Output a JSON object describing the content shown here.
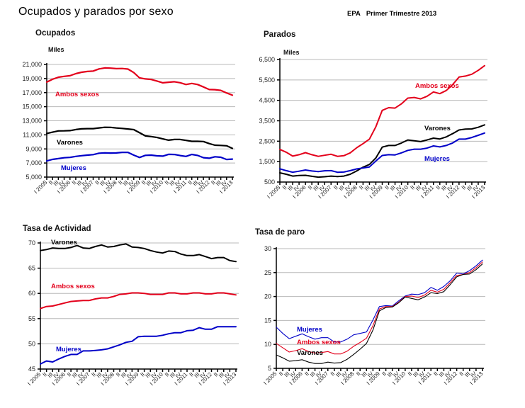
{
  "header": {
    "title": "Ocupados y parados por sexo",
    "source": "EPA",
    "period": "Primer Trimestre 2013"
  },
  "colors": {
    "ambos": "#e3001b",
    "varones": "#000000",
    "mujeres": "#0000c8",
    "grid": "#b8b8b8"
  },
  "chart_data": [
    {
      "id": "ocupados",
      "type": "line",
      "title": "Ocupados",
      "ylabel": "Miles",
      "xlabel": "",
      "ylim": [
        5000,
        21000
      ],
      "yticks": [
        5000,
        7000,
        9000,
        11000,
        13000,
        15000,
        17000,
        19000,
        21000
      ],
      "ytick_labels": [
        "5,000",
        "7,000",
        "9,000",
        "11,000",
        "13,000",
        "15,000",
        "17,000",
        "19,000",
        "21,000"
      ],
      "grid": true,
      "x": [
        "I 2005",
        "II",
        "III",
        "IV",
        "I 2006",
        "II",
        "III",
        "IV",
        "I 2007",
        "II",
        "III",
        "IV",
        "I 2008",
        "II",
        "III",
        "IV",
        "I 2009",
        "II",
        "III",
        "IV",
        "I 2010",
        "II",
        "III",
        "IV",
        "I 2011",
        "II",
        "III",
        "IV",
        "I 2012",
        "II",
        "III",
        "IV",
        "I 2013"
      ],
      "series": [
        {
          "name": "Ambos sexos",
          "color_key": "ambos",
          "values": [
            18490,
            18895,
            19191,
            19314,
            19400,
            19693,
            19896,
            20001,
            20069,
            20367,
            20511,
            20476,
            20402,
            20425,
            20346,
            19857,
            19090,
            18945,
            18870,
            18646,
            18394,
            18477,
            18547,
            18408,
            18152,
            18303,
            18156,
            17808,
            17433,
            17417,
            17320,
            16957,
            16635
          ]
        },
        {
          "name": "Varones",
          "color_key": "varones",
          "values": [
            11200,
            11376,
            11560,
            11570,
            11606,
            11750,
            11857,
            11880,
            11880,
            11980,
            12070,
            12060,
            11973,
            11918,
            11830,
            11740,
            11300,
            10851,
            10753,
            10630,
            10420,
            10245,
            10339,
            10345,
            10210,
            10080,
            10080,
            10050,
            9760,
            9525,
            9500,
            9450,
            9080
          ]
        },
        {
          "name": "Mujeres",
          "color_key": "mujeres",
          "values": [
            7290,
            7519,
            7631,
            7744,
            7794,
            7943,
            8039,
            8121,
            8189,
            8387,
            8441,
            8416,
            8429,
            8507,
            8516,
            8117,
            7790,
            8094,
            8117,
            8016,
            7974,
            8232,
            8208,
            8063,
            7942,
            8223,
            8076,
            7758,
            7673,
            7892,
            7820,
            7507,
            7555
          ]
        }
      ],
      "annotations": [
        {
          "text": "Ambos sexos",
          "color_key": "ambos"
        },
        {
          "text": "Varones",
          "color_key": "varones"
        },
        {
          "text": "Mujeres",
          "color_key": "mujeres"
        }
      ]
    },
    {
      "id": "parados",
      "type": "line",
      "title": "Parados",
      "ylabel": "Miles",
      "xlabel": "",
      "ylim": [
        500,
        6500
      ],
      "yticks": [
        500,
        1500,
        2500,
        3500,
        4500,
        5500,
        6500
      ],
      "ytick_labels": [
        "500",
        "1,500",
        "2,500",
        "3,500",
        "4,500",
        "5,500",
        "6,500"
      ],
      "grid": true,
      "x": [
        "I 2005",
        "II",
        "III",
        "IV",
        "I 2006",
        "II",
        "III",
        "IV",
        "I 2007",
        "II",
        "III",
        "IV",
        "I 2008",
        "II",
        "III",
        "IV",
        "I 2009",
        "II",
        "III",
        "IV",
        "I 2010",
        "II",
        "III",
        "IV",
        "I 2011",
        "II",
        "III",
        "IV",
        "I 2012",
        "II",
        "III",
        "IV",
        "I 2013"
      ],
      "series": [
        {
          "name": "Ambos sexos",
          "color_key": "ambos",
          "values": [
            2100,
            1960,
            1770,
            1840,
            1940,
            1840,
            1760,
            1810,
            1860,
            1760,
            1790,
            1930,
            2180,
            2380,
            2600,
            3210,
            4010,
            4140,
            4120,
            4330,
            4610,
            4640,
            4570,
            4700,
            4910,
            4830,
            4980,
            5270,
            5640,
            5690,
            5780,
            5970,
            6200
          ]
        },
        {
          "name": "Varones",
          "color_key": "varones",
          "values": [
            950,
            880,
            790,
            820,
            830,
            780,
            740,
            760,
            790,
            770,
            790,
            880,
            1040,
            1230,
            1360,
            1680,
            2210,
            2290,
            2290,
            2410,
            2560,
            2520,
            2480,
            2560,
            2650,
            2610,
            2710,
            2870,
            3050,
            3090,
            3100,
            3180,
            3300
          ]
        },
        {
          "name": "Mujeres",
          "color_key": "mujeres",
          "values": [
            1150,
            1060,
            980,
            1030,
            1090,
            1040,
            1010,
            1050,
            1060,
            980,
            990,
            1060,
            1140,
            1190,
            1240,
            1530,
            1800,
            1840,
            1830,
            1930,
            2050,
            2110,
            2110,
            2160,
            2270,
            2220,
            2290,
            2410,
            2600,
            2600,
            2680,
            2790,
            2900
          ]
        }
      ],
      "annotations": [
        {
          "text": "Ambos sexos",
          "color_key": "ambos"
        },
        {
          "text": "Varones",
          "color_key": "varones"
        },
        {
          "text": "Mujeres",
          "color_key": "mujeres"
        }
      ]
    },
    {
      "id": "tasa-actividad",
      "type": "line",
      "title": "Tasa de Actividad",
      "ylabel": "",
      "xlabel": "",
      "ylim": [
        45,
        70
      ],
      "yticks": [
        45,
        50,
        55,
        60,
        65,
        70
      ],
      "ytick_labels": [
        "45",
        "50",
        "55",
        "60",
        "65",
        "70"
      ],
      "grid": true,
      "x": [
        "I 2005",
        "II",
        "III",
        "IV",
        "I 2006",
        "II",
        "III",
        "IV",
        "I 2007",
        "II",
        "III",
        "IV",
        "I 2008",
        "II",
        "III",
        "IV",
        "I 2009",
        "II",
        "III",
        "IV",
        "I 2010",
        "II",
        "III",
        "IV",
        "I 2011",
        "II",
        "III",
        "IV",
        "I 2012",
        "II",
        "III",
        "IV",
        "I 2013"
      ],
      "series": [
        {
          "name": "Varones",
          "color_key": "varones",
          "values": [
            68.5,
            68.7,
            69.0,
            68.9,
            68.9,
            69.1,
            69.5,
            69.0,
            68.9,
            69.3,
            69.6,
            69.2,
            69.3,
            69.6,
            69.8,
            69.2,
            69.1,
            68.9,
            68.5,
            68.2,
            68.0,
            68.4,
            68.3,
            67.8,
            67.5,
            67.5,
            67.7,
            67.3,
            66.9,
            67.1,
            67.1,
            66.5,
            66.3
          ]
        },
        {
          "name": "Ambos sexos",
          "color_key": "ambos",
          "values": [
            57.0,
            57.4,
            57.5,
            57.8,
            58.1,
            58.4,
            58.5,
            58.6,
            58.6,
            58.9,
            59.1,
            59.1,
            59.4,
            59.8,
            59.9,
            60.1,
            60.1,
            60.0,
            59.8,
            59.8,
            59.8,
            60.1,
            60.1,
            59.9,
            59.9,
            60.1,
            60.1,
            59.9,
            59.9,
            60.1,
            60.1,
            59.9,
            59.7
          ]
        },
        {
          "name": "Mujeres",
          "color_key": "mujeres",
          "values": [
            46.0,
            46.6,
            46.4,
            47.0,
            47.5,
            47.9,
            47.9,
            48.6,
            48.6,
            48.7,
            48.8,
            49.0,
            49.4,
            49.8,
            50.3,
            50.5,
            51.4,
            51.5,
            51.5,
            51.5,
            51.7,
            52.0,
            52.2,
            52.2,
            52.6,
            52.7,
            53.2,
            52.9,
            52.9,
            53.4,
            53.4,
            53.4,
            53.4
          ]
        }
      ],
      "annotations": [
        {
          "text": "Varones",
          "color_key": "varones"
        },
        {
          "text": "Ambos sexos",
          "color_key": "ambos"
        },
        {
          "text": "Mujeres",
          "color_key": "mujeres"
        }
      ]
    },
    {
      "id": "tasa-paro",
      "type": "line",
      "title": "Tasa de paro",
      "ylabel": "",
      "xlabel": "",
      "ylim": [
        5,
        30
      ],
      "yticks": [
        5,
        10,
        15,
        20,
        25,
        30
      ],
      "ytick_labels": [
        "5",
        "10",
        "15",
        "20",
        "25",
        "30"
      ],
      "grid": true,
      "x": [
        "I 2005",
        "II",
        "III",
        "IV",
        "I 2006",
        "II",
        "III",
        "IV",
        "I 2007",
        "II",
        "III",
        "IV",
        "I 2008",
        "II",
        "III",
        "IV",
        "I 2009",
        "II",
        "III",
        "IV",
        "I 2010",
        "II",
        "III",
        "IV",
        "I 2011",
        "II",
        "III",
        "IV",
        "I 2012",
        "II",
        "III",
        "IV",
        "I 2013"
      ],
      "series": [
        {
          "name": "Mujeres",
          "color_key": "mujeres",
          "values": [
            13.6,
            12.3,
            11.2,
            11.7,
            12.2,
            11.6,
            11.1,
            11.4,
            11.4,
            10.5,
            10.5,
            11.1,
            12.0,
            12.3,
            12.6,
            15.1,
            17.9,
            18.1,
            18.0,
            19.1,
            20.1,
            20.5,
            20.4,
            20.8,
            21.9,
            21.3,
            22.1,
            23.3,
            24.9,
            24.7,
            25.4,
            26.4,
            27.6
          ]
        },
        {
          "name": "Ambos sexos",
          "color_key": "ambos",
          "values": [
            10.2,
            9.3,
            8.4,
            8.7,
            9.1,
            8.5,
            8.2,
            8.3,
            8.5,
            8.0,
            8.0,
            8.6,
            9.6,
            10.4,
            11.3,
            13.9,
            17.4,
            17.9,
            17.9,
            18.8,
            20.0,
            20.1,
            19.8,
            20.3,
            21.3,
            20.9,
            21.5,
            22.9,
            24.4,
            24.6,
            25.0,
            26.0,
            27.2
          ]
        },
        {
          "name": "Varones",
          "color_key": "varones",
          "values": [
            7.8,
            7.2,
            6.5,
            6.6,
            6.8,
            6.3,
            6.0,
            6.0,
            6.3,
            6.1,
            6.2,
            6.9,
            7.9,
            9.0,
            10.2,
            13.0,
            17.0,
            17.7,
            17.8,
            18.7,
            19.9,
            19.6,
            19.3,
            19.9,
            20.8,
            20.6,
            21.0,
            22.5,
            24.1,
            24.6,
            24.7,
            25.6,
            26.8
          ]
        }
      ],
      "annotations": [
        {
          "text": "Mujeres",
          "color_key": "mujeres"
        },
        {
          "text": "Ambos sexos",
          "color_key": "ambos"
        },
        {
          "text": "Varones",
          "color_key": "varones"
        }
      ]
    }
  ]
}
